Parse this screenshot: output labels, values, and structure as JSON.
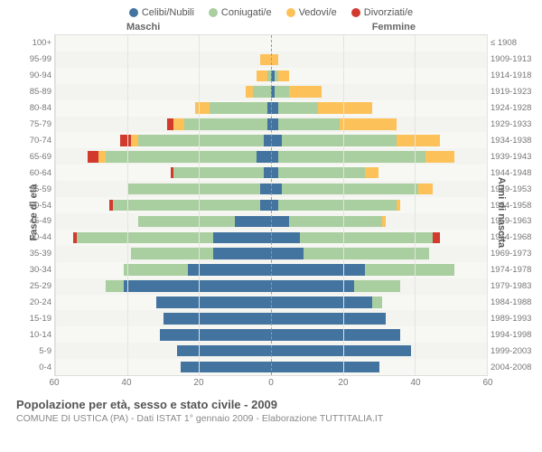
{
  "legend": [
    {
      "label": "Celibi/Nubili",
      "color": "#43739f"
    },
    {
      "label": "Coniugati/e",
      "color": "#a9ce9f"
    },
    {
      "label": "Vedovi/e",
      "color": "#fdc15a"
    },
    {
      "label": "Divorziati/e",
      "color": "#d23a2e"
    }
  ],
  "gender_labels": {
    "left": "Maschi",
    "right": "Femmine"
  },
  "axis_titles": {
    "left": "Fasce di età",
    "right": "Anni di nascita"
  },
  "colors": {
    "celibi": "#43739f",
    "coniugati": "#a9ce9f",
    "vedovi": "#fdc15a",
    "divorziati": "#d23a2e",
    "plot_bg": "#f7f7f4",
    "grid": "#e4e4e0",
    "center": "#999999"
  },
  "xmax": 60,
  "xticks_left": [
    60,
    40,
    20,
    0
  ],
  "xticks_right": [
    0,
    20,
    40,
    60
  ],
  "rows": [
    {
      "age": "100+",
      "birth": "≤ 1908",
      "m": {
        "c": 0,
        "m": 0,
        "w": 0,
        "d": 0
      },
      "f": {
        "c": 0,
        "m": 0,
        "w": 0,
        "d": 0
      }
    },
    {
      "age": "95-99",
      "birth": "1909-1913",
      "m": {
        "c": 0,
        "m": 0,
        "w": 3,
        "d": 0
      },
      "f": {
        "c": 0,
        "m": 0,
        "w": 2,
        "d": 0
      }
    },
    {
      "age": "90-94",
      "birth": "1914-1918",
      "m": {
        "c": 0,
        "m": 1,
        "w": 3,
        "d": 0
      },
      "f": {
        "c": 1,
        "m": 1,
        "w": 3,
        "d": 0
      }
    },
    {
      "age": "85-89",
      "birth": "1919-1923",
      "m": {
        "c": 0,
        "m": 5,
        "w": 2,
        "d": 0
      },
      "f": {
        "c": 1,
        "m": 4,
        "w": 9,
        "d": 0
      }
    },
    {
      "age": "80-84",
      "birth": "1924-1928",
      "m": {
        "c": 1,
        "m": 16,
        "w": 4,
        "d": 0
      },
      "f": {
        "c": 2,
        "m": 11,
        "w": 15,
        "d": 0
      }
    },
    {
      "age": "75-79",
      "birth": "1929-1933",
      "m": {
        "c": 1,
        "m": 23,
        "w": 3,
        "d": 2
      },
      "f": {
        "c": 2,
        "m": 17,
        "w": 16,
        "d": 0
      }
    },
    {
      "age": "70-74",
      "birth": "1934-1938",
      "m": {
        "c": 2,
        "m": 35,
        "w": 2,
        "d": 3
      },
      "f": {
        "c": 3,
        "m": 32,
        "w": 12,
        "d": 0
      }
    },
    {
      "age": "65-69",
      "birth": "1939-1943",
      "m": {
        "c": 4,
        "m": 42,
        "w": 2,
        "d": 3
      },
      "f": {
        "c": 2,
        "m": 41,
        "w": 8,
        "d": 0
      }
    },
    {
      "age": "60-64",
      "birth": "1944-1948",
      "m": {
        "c": 2,
        "m": 25,
        "w": 0,
        "d": 1
      },
      "f": {
        "c": 2,
        "m": 24,
        "w": 4,
        "d": 0
      }
    },
    {
      "age": "55-59",
      "birth": "1949-1953",
      "m": {
        "c": 3,
        "m": 37,
        "w": 0,
        "d": 0
      },
      "f": {
        "c": 3,
        "m": 38,
        "w": 4,
        "d": 0
      }
    },
    {
      "age": "50-54",
      "birth": "1954-1958",
      "m": {
        "c": 3,
        "m": 41,
        "w": 0,
        "d": 1
      },
      "f": {
        "c": 2,
        "m": 33,
        "w": 1,
        "d": 0
      }
    },
    {
      "age": "45-49",
      "birth": "1959-1963",
      "m": {
        "c": 10,
        "m": 27,
        "w": 0,
        "d": 0
      },
      "f": {
        "c": 5,
        "m": 26,
        "w": 1,
        "d": 0
      }
    },
    {
      "age": "40-44",
      "birth": "1964-1968",
      "m": {
        "c": 16,
        "m": 38,
        "w": 0,
        "d": 1
      },
      "f": {
        "c": 8,
        "m": 37,
        "w": 0,
        "d": 2
      }
    },
    {
      "age": "35-39",
      "birth": "1969-1973",
      "m": {
        "c": 16,
        "m": 23,
        "w": 0,
        "d": 0
      },
      "f": {
        "c": 9,
        "m": 35,
        "w": 0,
        "d": 0
      }
    },
    {
      "age": "30-34",
      "birth": "1974-1978",
      "m": {
        "c": 23,
        "m": 18,
        "w": 0,
        "d": 0
      },
      "f": {
        "c": 26,
        "m": 25,
        "w": 0,
        "d": 0
      }
    },
    {
      "age": "25-29",
      "birth": "1979-1983",
      "m": {
        "c": 41,
        "m": 5,
        "w": 0,
        "d": 0
      },
      "f": {
        "c": 23,
        "m": 13,
        "w": 0,
        "d": 0
      }
    },
    {
      "age": "20-24",
      "birth": "1984-1988",
      "m": {
        "c": 32,
        "m": 0,
        "w": 0,
        "d": 0
      },
      "f": {
        "c": 28,
        "m": 3,
        "w": 0,
        "d": 0
      }
    },
    {
      "age": "15-19",
      "birth": "1989-1993",
      "m": {
        "c": 30,
        "m": 0,
        "w": 0,
        "d": 0
      },
      "f": {
        "c": 32,
        "m": 0,
        "w": 0,
        "d": 0
      }
    },
    {
      "age": "10-14",
      "birth": "1994-1998",
      "m": {
        "c": 31,
        "m": 0,
        "w": 0,
        "d": 0
      },
      "f": {
        "c": 36,
        "m": 0,
        "w": 0,
        "d": 0
      }
    },
    {
      "age": "5-9",
      "birth": "1999-2003",
      "m": {
        "c": 26,
        "m": 0,
        "w": 0,
        "d": 0
      },
      "f": {
        "c": 39,
        "m": 0,
        "w": 0,
        "d": 0
      }
    },
    {
      "age": "0-4",
      "birth": "2004-2008",
      "m": {
        "c": 25,
        "m": 0,
        "w": 0,
        "d": 0
      },
      "f": {
        "c": 30,
        "m": 0,
        "w": 0,
        "d": 0
      }
    }
  ],
  "footer": {
    "title": "Popolazione per età, sesso e stato civile - 2009",
    "subtitle": "COMUNE DI USTICA (PA) - Dati ISTAT 1° gennaio 2009 - Elaborazione TUTTITALIA.IT"
  }
}
